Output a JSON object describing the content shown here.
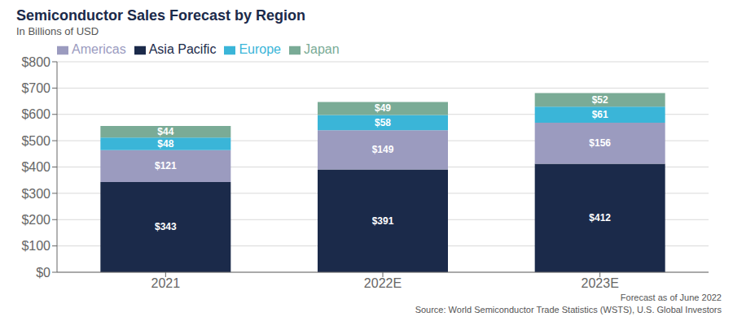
{
  "chart_data": {
    "type": "bar",
    "title": "Semiconductor Sales Forecast by Region",
    "subtitle": "In Billions of USD",
    "categories": [
      "2021",
      "2022E",
      "2023E"
    ],
    "series": [
      {
        "name": "Asia Pacific",
        "color": "#1b2a4a",
        "values": [
          343,
          391,
          412
        ],
        "value_labels": [
          "$343",
          "$391",
          "$412"
        ]
      },
      {
        "name": "Americas",
        "color": "#9b9bbf",
        "values": [
          121,
          149,
          156
        ],
        "value_labels": [
          "$121",
          "$149",
          "$156"
        ]
      },
      {
        "name": "Europe",
        "color": "#3ab5d8",
        "values": [
          48,
          58,
          61
        ],
        "value_labels": [
          "$48",
          "$58",
          "$61"
        ]
      },
      {
        "name": "Japan",
        "color": "#7aab96",
        "values": [
          44,
          49,
          52
        ],
        "value_labels": [
          "$44",
          "$49",
          "$52"
        ]
      }
    ],
    "stacked": true,
    "data_labels": true,
    "grid": true,
    "legend": "upper left",
    "ylim": [
      0,
      800
    ],
    "yticks": [
      {
        "value": 0,
        "label": "$0"
      },
      {
        "value": 100,
        "label": "$100"
      },
      {
        "value": 200,
        "label": "$200"
      },
      {
        "value": 300,
        "label": "$300"
      },
      {
        "value": 400,
        "label": "$400"
      },
      {
        "value": 500,
        "label": "$500"
      },
      {
        "value": 600,
        "label": "$600"
      },
      {
        "value": 700,
        "label": "$700"
      },
      {
        "value": 800,
        "label": "$800"
      }
    ],
    "annotations": [
      "Forecast as of June 2022",
      "Source: World Semiconductor Trade Statistics (WSTS), U.S. Global Investors"
    ]
  }
}
